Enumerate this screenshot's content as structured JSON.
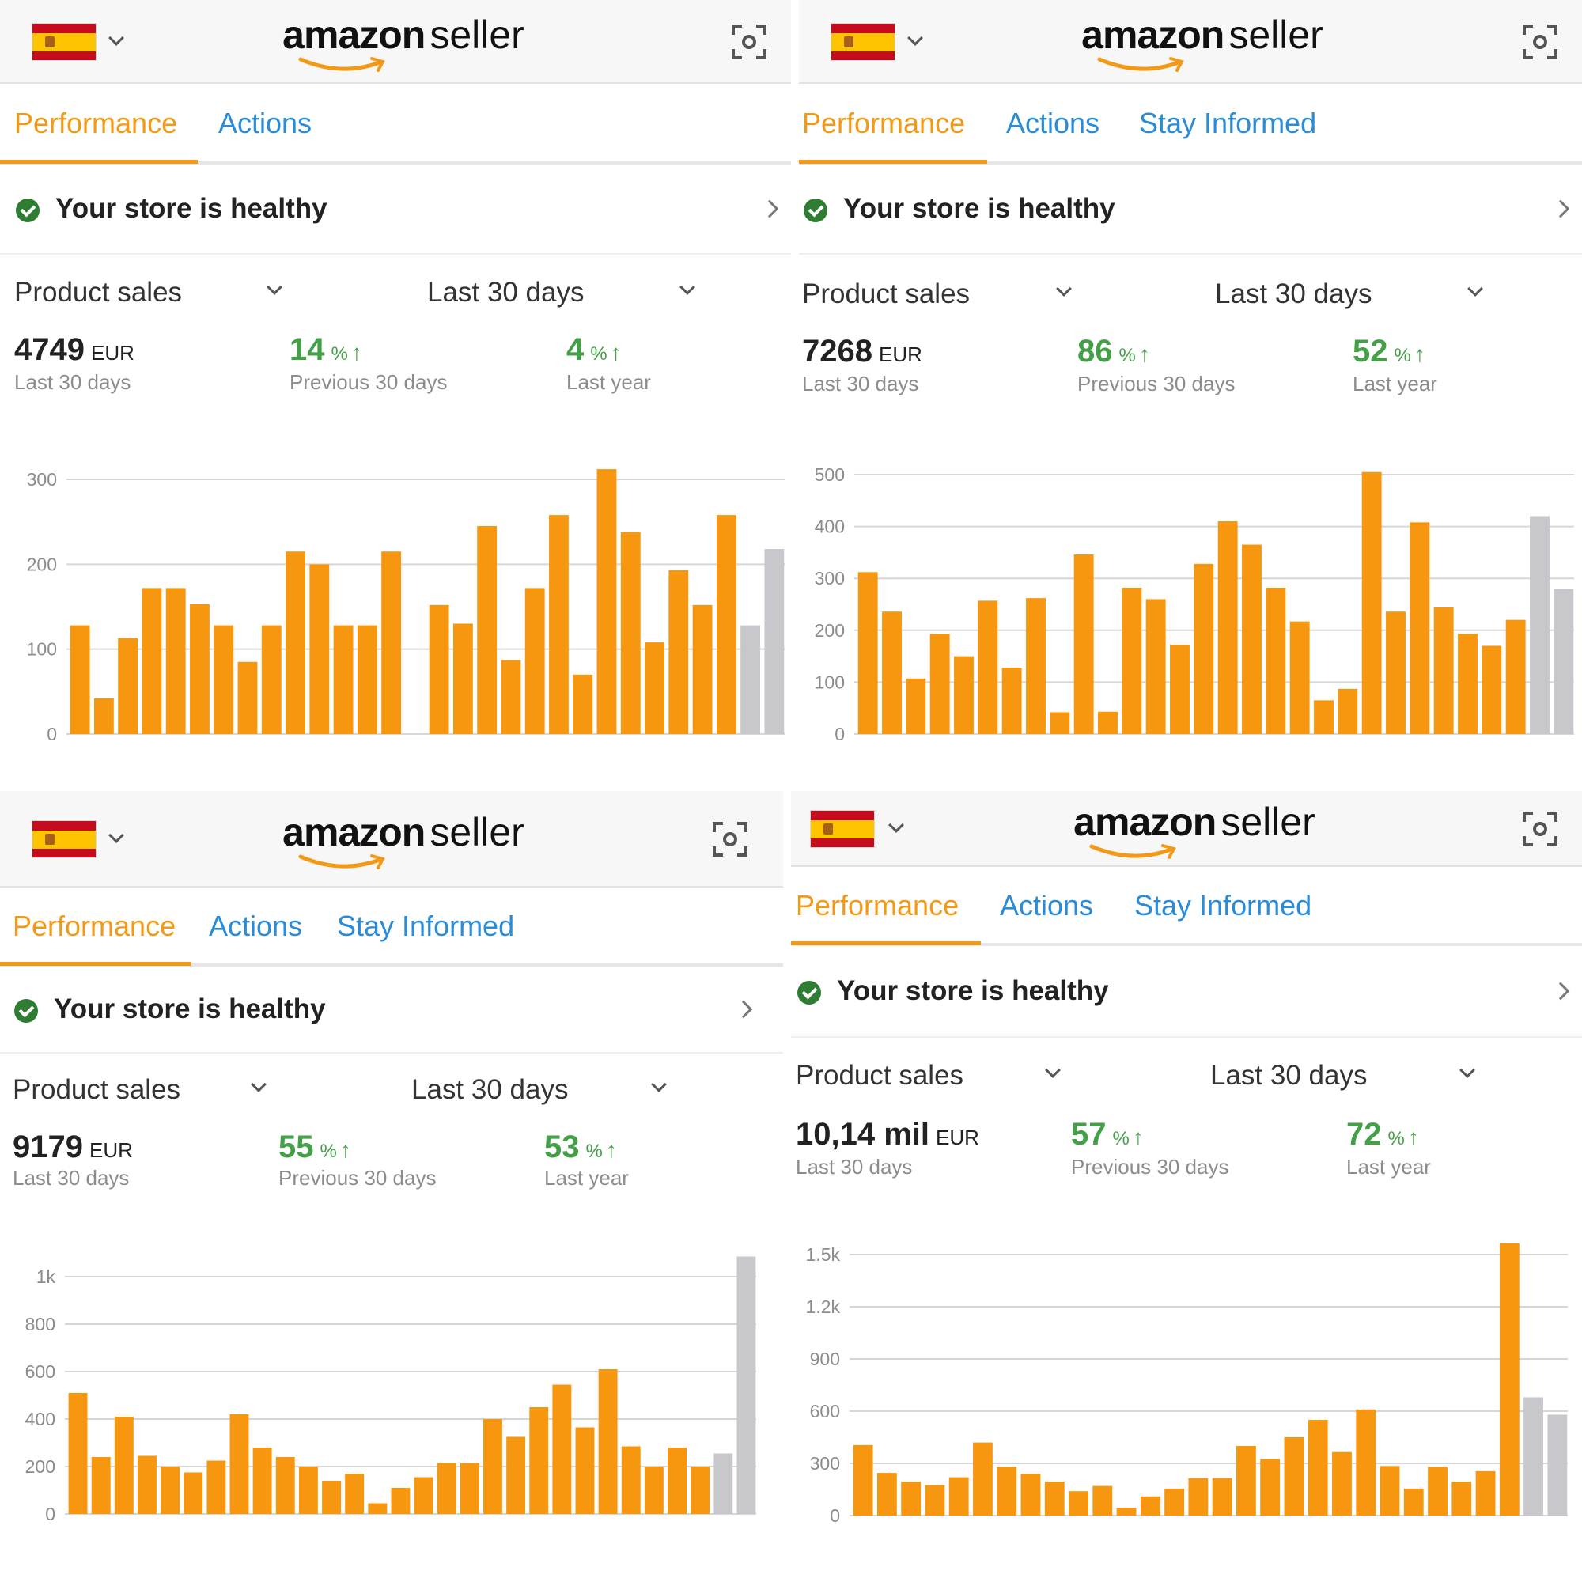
{
  "app": {
    "logo_word1": "amazon",
    "logo_word2": "seller",
    "flag_icon": "spain-flag-icon",
    "scan_icon": "scan-icon",
    "accent_color": "#f29a18",
    "link_color": "#2a8bd6",
    "bar_color": "#f7960f",
    "comparison_bar_color": "#c8c8cc",
    "growth_color": "#43a047"
  },
  "panels": [
    {
      "tabs": [
        {
          "label": "Performance",
          "active": true
        },
        {
          "label": "Actions",
          "active": false
        }
      ],
      "health": "Your store is healthy",
      "metric_selector": "Product sales",
      "period_selector": "Last 30 days",
      "total": {
        "value": "4749",
        "currency": "EUR",
        "label": "Last 30 days"
      },
      "prev": {
        "value": "14",
        "unit": "%",
        "arrow": "↑",
        "label": "Previous 30 days"
      },
      "year": {
        "value": "4",
        "unit": "%",
        "arrow": "↑",
        "label": "Last year"
      },
      "chart_data": {
        "type": "bar",
        "y_ticks": [
          "0",
          "100",
          "200",
          "300"
        ],
        "y_tick_values": [
          0,
          100,
          200,
          300
        ],
        "ylim": [
          0,
          300
        ],
        "grid": true,
        "values": [
          128,
          42,
          113,
          172,
          172,
          153,
          128,
          85,
          128,
          215,
          200,
          128,
          128,
          215,
          null,
          152,
          130,
          245,
          87,
          172,
          258,
          70,
          312,
          238,
          108,
          193,
          152,
          258
        ],
        "comparison_values": [
          128,
          218
        ]
      }
    },
    {
      "tabs": [
        {
          "label": "Performance",
          "active": true
        },
        {
          "label": "Actions",
          "active": false
        },
        {
          "label": "Stay Informed",
          "active": false
        }
      ],
      "health": "Your store is healthy",
      "metric_selector": "Product sales",
      "period_selector": "Last 30 days",
      "total": {
        "value": "7268",
        "currency": "EUR",
        "label": "Last 30 days"
      },
      "prev": {
        "value": "86",
        "unit": "%",
        "arrow": "↑",
        "label": "Previous 30 days"
      },
      "year": {
        "value": "52",
        "unit": "%",
        "arrow": "↑",
        "label": "Last year"
      },
      "chart_data": {
        "type": "bar",
        "y_ticks": [
          "0",
          "100",
          "200",
          "300",
          "400",
          "500"
        ],
        "y_tick_values": [
          0,
          100,
          200,
          300,
          400,
          500
        ],
        "ylim": [
          0,
          500
        ],
        "grid": true,
        "values": [
          312,
          236,
          107,
          193,
          150,
          257,
          128,
          262,
          42,
          346,
          43,
          282,
          260,
          172,
          328,
          410,
          365,
          282,
          217,
          65,
          87,
          505,
          236,
          408,
          244,
          193,
          170,
          220
        ],
        "comparison_values": [
          420,
          280
        ]
      }
    },
    {
      "tabs": [
        {
          "label": "Performance",
          "active": true
        },
        {
          "label": "Actions",
          "active": false
        },
        {
          "label": "Stay Informed",
          "active": false
        }
      ],
      "health": "Your store is healthy",
      "metric_selector": "Product sales",
      "period_selector": "Last 30 days",
      "total": {
        "value": "9179",
        "currency": "EUR",
        "label": "Last 30 days"
      },
      "prev": {
        "value": "55",
        "unit": "%",
        "arrow": "↑",
        "label": "Previous 30 days"
      },
      "year": {
        "value": "53",
        "unit": "%",
        "arrow": "↑",
        "label": "Last year"
      },
      "chart_data": {
        "type": "bar",
        "y_ticks": [
          "0",
          "200",
          "400",
          "600",
          "800",
          "1k"
        ],
        "y_tick_values": [
          0,
          200,
          400,
          600,
          800,
          1000
        ],
        "ylim": [
          0,
          1000
        ],
        "grid": true,
        "values": [
          510,
          240,
          410,
          245,
          200,
          175,
          225,
          420,
          280,
          240,
          200,
          140,
          170,
          45,
          110,
          155,
          215,
          215,
          400,
          325,
          450,
          545,
          365,
          610,
          285,
          200,
          280,
          200
        ],
        "comparison_values": [
          255,
          1085
        ]
      }
    },
    {
      "tabs": [
        {
          "label": "Performance",
          "active": true
        },
        {
          "label": "Actions",
          "active": false
        },
        {
          "label": "Stay Informed",
          "active": false
        }
      ],
      "health": "Your store is healthy",
      "metric_selector": "Product sales",
      "period_selector": "Last 30 days",
      "total": {
        "value": "10,14 mil",
        "currency": "EUR",
        "label": "Last 30 days"
      },
      "prev": {
        "value": "57",
        "unit": "%",
        "arrow": "↑",
        "label": "Previous 30 days"
      },
      "year": {
        "value": "72",
        "unit": "%",
        "arrow": "↑",
        "label": "Last year"
      },
      "chart_data": {
        "type": "bar",
        "y_ticks": [
          "0",
          "300",
          "600",
          "900",
          "1.2k",
          "1.5k"
        ],
        "y_tick_values": [
          0,
          300,
          600,
          900,
          1200,
          1500
        ],
        "ylim": [
          0,
          1500
        ],
        "grid": true,
        "values": [
          405,
          245,
          195,
          175,
          220,
          420,
          280,
          240,
          195,
          140,
          170,
          45,
          110,
          155,
          215,
          215,
          400,
          325,
          450,
          550,
          365,
          610,
          285,
          155,
          280,
          195,
          255,
          1565
        ],
        "comparison_values": [
          680,
          580
        ]
      }
    }
  ]
}
